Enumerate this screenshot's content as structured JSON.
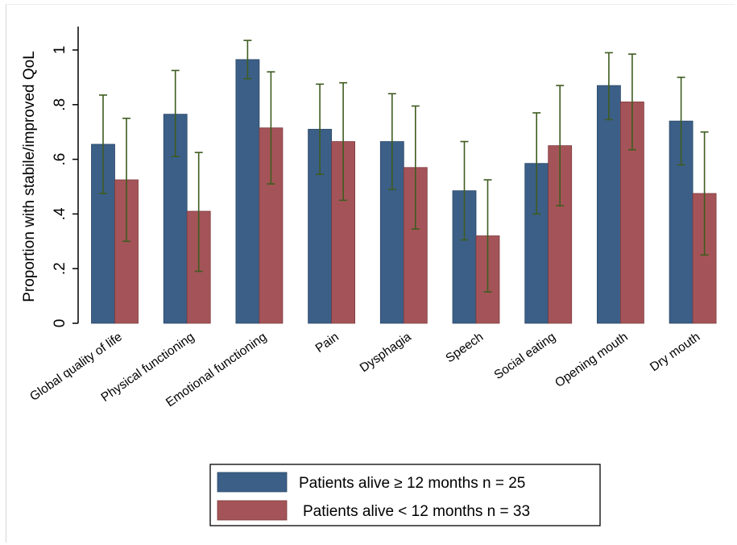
{
  "chart_data": {
    "type": "bar",
    "ylabel": "Proportion with stabile/improved QoL",
    "ylim": [
      0,
      1.08
    ],
    "yticks": [
      {
        "value": 0,
        "label": "0"
      },
      {
        "value": 0.2,
        "label": ".2"
      },
      {
        "value": 0.4,
        "label": ".4"
      },
      {
        "value": 0.6,
        "label": ".6"
      },
      {
        "value": 0.8,
        "label": ".8"
      },
      {
        "value": 1,
        "label": "1"
      }
    ],
    "grid": false,
    "legend_position": "bottom",
    "categories": [
      "Global quality of life",
      "Physical functioning",
      "Emotional functioning",
      "Pain",
      "Dysphagia",
      "Speech",
      "Social eating",
      "Opening mouth",
      "Dry mouth"
    ],
    "series": [
      {
        "name": "Patients alive ≥ 12 months n = 25",
        "color": "#3b5f87",
        "values": [
          0.655,
          0.765,
          0.965,
          0.71,
          0.665,
          0.485,
          0.585,
          0.87,
          0.74
        ],
        "ci_low": [
          0.475,
          0.61,
          0.895,
          0.545,
          0.49,
          0.305,
          0.4,
          0.745,
          0.58
        ],
        "ci_high": [
          0.835,
          0.925,
          1.035,
          0.875,
          0.84,
          0.665,
          0.77,
          0.99,
          0.9
        ]
      },
      {
        "name": "Patients alive < 12 months n = 33",
        "color": "#a45458",
        "values": [
          0.525,
          0.41,
          0.715,
          0.665,
          0.57,
          0.32,
          0.65,
          0.81,
          0.475
        ],
        "ci_low": [
          0.3,
          0.19,
          0.51,
          0.45,
          0.345,
          0.115,
          0.43,
          0.635,
          0.25
        ],
        "ci_high": [
          0.75,
          0.625,
          0.92,
          0.88,
          0.795,
          0.525,
          0.87,
          0.985,
          0.7
        ]
      }
    ],
    "error_bar_color": "#3e5c1f"
  }
}
